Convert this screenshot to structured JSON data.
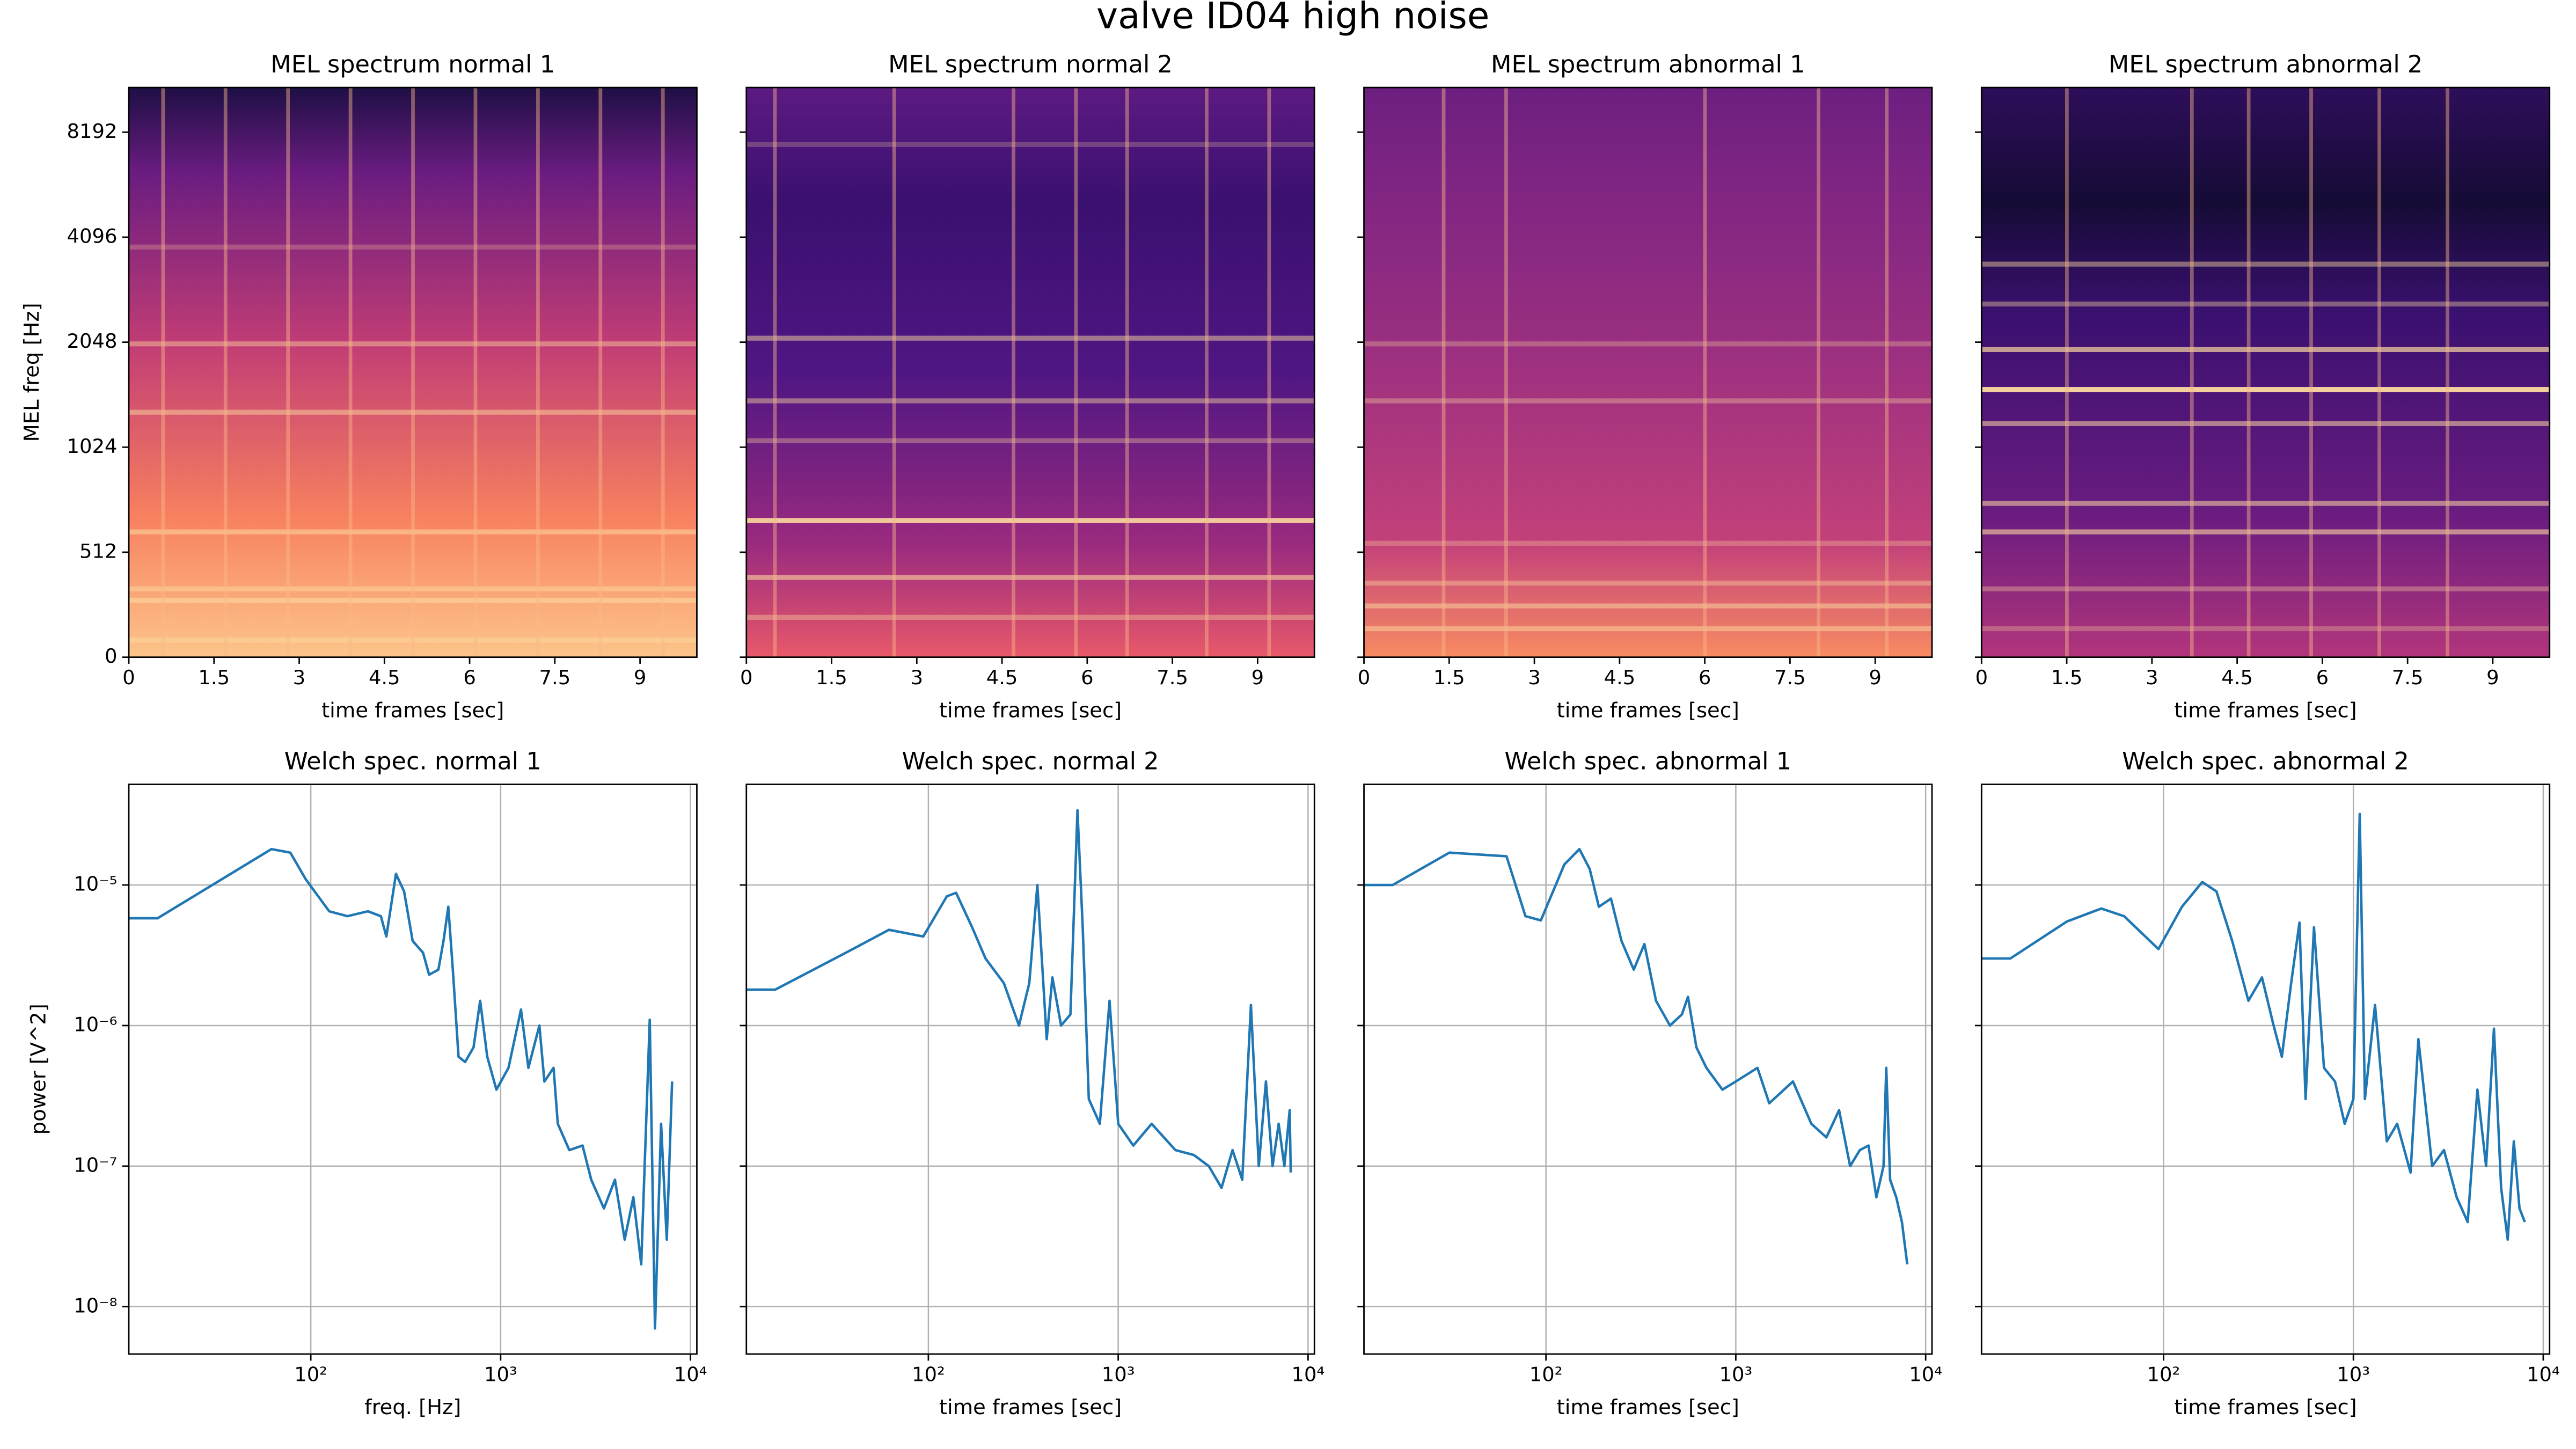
{
  "title": "valve ID04 high noise",
  "chart_data": [
    {
      "type": "heatmap",
      "title": "MEL spectrum normal 1",
      "xlabel": "time frames [sec]",
      "ylabel": "MEL freq [Hz]",
      "xlim": [
        0,
        10
      ],
      "xticks": [
        0,
        1.5,
        3,
        4.5,
        6,
        7.5,
        9
      ],
      "ylim": [
        0,
        11000
      ],
      "yscale": "symlog",
      "linthresh": 512,
      "yticks": [
        0,
        512,
        1024,
        2048,
        4096,
        8192
      ],
      "show_yticklabels": true
    },
    {
      "type": "heatmap",
      "title": "MEL spectrum normal 2",
      "xlabel": "time frames [sec]",
      "xlim": [
        0,
        10
      ],
      "xticks": [
        0,
        1.5,
        3,
        4.5,
        6,
        7.5,
        9
      ],
      "ylim": [
        0,
        11000
      ],
      "yscale": "symlog",
      "linthresh": 512,
      "yticks": [
        0,
        512,
        1024,
        2048,
        4096,
        8192
      ],
      "show_yticklabels": false
    },
    {
      "type": "heatmap",
      "title": "MEL spectrum abnormal 1",
      "xlabel": "time frames [sec]",
      "xlim": [
        0,
        10
      ],
      "xticks": [
        0,
        1.5,
        3,
        4.5,
        6,
        7.5,
        9
      ],
      "ylim": [
        0,
        11000
      ],
      "yscale": "symlog",
      "linthresh": 512,
      "yticks": [
        0,
        512,
        1024,
        2048,
        4096,
        8192
      ],
      "show_yticklabels": false
    },
    {
      "type": "heatmap",
      "title": "MEL spectrum abnormal 2",
      "xlabel": "time frames [sec]",
      "xlim": [
        0,
        10
      ],
      "xticks": [
        0,
        1.5,
        3,
        4.5,
        6,
        7.5,
        9
      ],
      "ylim": [
        0,
        11000
      ],
      "yscale": "symlog",
      "linthresh": 512,
      "yticks": [
        0,
        512,
        1024,
        2048,
        4096,
        8192
      ],
      "show_yticklabels": false
    },
    {
      "type": "line",
      "title": "Welch spec. normal 1",
      "xlabel": "freq. [Hz]",
      "ylabel": "power [V^2]",
      "xscale": "log",
      "yscale": "log",
      "grid": true,
      "color": "#1f77b4",
      "xlim": [
        11,
        10800
      ],
      "ylim": [
        4.6e-09,
        5.2e-05
      ],
      "xticks": [
        {
          "value": 100,
          "label": "10²"
        },
        {
          "value": 1000,
          "label": "10³"
        },
        {
          "value": 10000,
          "label": "10⁴"
        }
      ],
      "yticks": [
        {
          "value": 1e-08,
          "label": "10⁻⁸"
        },
        {
          "value": 1e-07,
          "label": "10⁻⁷"
        },
        {
          "value": 1e-06,
          "label": "10⁻⁶"
        },
        {
          "value": 1e-05,
          "label": "10⁻⁵"
        }
      ],
      "show_yticklabels": true,
      "x": [
        11,
        15.6,
        62,
        78,
        94,
        125,
        156,
        200,
        234,
        250,
        281,
        310,
        344,
        390,
        420,
        470,
        500,
        530,
        560,
        600,
        650,
        720,
        780,
        850,
        950,
        1100,
        1280,
        1400,
        1600,
        1700,
        1900,
        2000,
        2300,
        2700,
        3000,
        3500,
        4000,
        4500,
        5000,
        5500,
        6100,
        6500,
        7000,
        7500,
        8000
      ],
      "values": [
        5.8e-06,
        5.8e-06,
        1.8e-05,
        1.7e-05,
        1.1e-05,
        6.5e-06,
        6e-06,
        6.5e-06,
        6e-06,
        4.3e-06,
        1.2e-05,
        9e-06,
        4e-06,
        3.3e-06,
        2.3e-06,
        2.5e-06,
        4e-06,
        7e-06,
        2.5e-06,
        6e-07,
        5.5e-07,
        7e-07,
        1.5e-06,
        6e-07,
        3.5e-07,
        5e-07,
        1.3e-06,
        5e-07,
        1e-06,
        4e-07,
        5e-07,
        2e-07,
        1.3e-07,
        1.4e-07,
        8e-08,
        5e-08,
        8e-08,
        3e-08,
        6e-08,
        2e-08,
        1.1e-06,
        7e-09,
        2e-07,
        3e-08,
        4e-07
      ]
    },
    {
      "type": "line",
      "title": "Welch spec. normal 2",
      "xlabel": "time frames [sec]",
      "xscale": "log",
      "yscale": "log",
      "grid": true,
      "color": "#1f77b4",
      "xlim": [
        11,
        10800
      ],
      "ylim": [
        4.6e-09,
        5.2e-05
      ],
      "xticks": [
        {
          "value": 100,
          "label": "10²"
        },
        {
          "value": 1000,
          "label": "10³"
        },
        {
          "value": 10000,
          "label": "10⁴"
        }
      ],
      "yticks": [
        1e-08,
        1e-07,
        1e-06,
        1e-05
      ],
      "show_yticklabels": false,
      "x": [
        11,
        15.6,
        40,
        62,
        94,
        125,
        140,
        170,
        200,
        250,
        300,
        340,
        375,
        420,
        450,
        500,
        560,
        610,
        650,
        700,
        800,
        900,
        1000,
        1200,
        1500,
        2000,
        2500,
        3000,
        3500,
        4000,
        4500,
        5000,
        5500,
        6000,
        6500,
        7000,
        7500,
        8000,
        8100
      ],
      "values": [
        1.8e-06,
        1.8e-06,
        3.5e-06,
        4.8e-06,
        4.3e-06,
        8.3e-06,
        8.8e-06,
        5e-06,
        3e-06,
        2e-06,
        1e-06,
        2e-06,
        1e-05,
        8e-07,
        2.2e-06,
        1e-06,
        1.2e-06,
        3.4e-05,
        5e-06,
        3e-07,
        2e-07,
        1.5e-06,
        2e-07,
        1.4e-07,
        2e-07,
        1.3e-07,
        1.2e-07,
        1e-07,
        7e-08,
        1.3e-07,
        8e-08,
        1.4e-06,
        1e-07,
        4e-07,
        1e-07,
        2e-07,
        1e-07,
        2.5e-07,
        9e-08
      ]
    },
    {
      "type": "line",
      "title": "Welch spec. abnormal 1",
      "xlabel": "time frames [sec]",
      "xscale": "log",
      "yscale": "log",
      "grid": true,
      "color": "#1f77b4",
      "xlim": [
        11,
        10800
      ],
      "ylim": [
        4.6e-09,
        5.2e-05
      ],
      "xticks": [
        {
          "value": 100,
          "label": "10²"
        },
        {
          "value": 1000,
          "label": "10³"
        },
        {
          "value": 10000,
          "label": "10⁴"
        }
      ],
      "yticks": [
        1e-08,
        1e-07,
        1e-06,
        1e-05
      ],
      "show_yticklabels": false,
      "x": [
        11,
        15.6,
        31,
        62,
        78,
        94,
        125,
        150,
        170,
        190,
        220,
        250,
        290,
        330,
        380,
        450,
        520,
        560,
        620,
        700,
        850,
        1000,
        1300,
        1500,
        2000,
        2500,
        3000,
        3500,
        4000,
        4500,
        5000,
        5500,
        6000,
        6200,
        6500,
        7000,
        7500,
        8000
      ],
      "values": [
        1e-05,
        1e-05,
        1.7e-05,
        1.6e-05,
        6e-06,
        5.6e-06,
        1.4e-05,
        1.8e-05,
        1.3e-05,
        7e-06,
        8e-06,
        4e-06,
        2.5e-06,
        3.8e-06,
        1.5e-06,
        1e-06,
        1.2e-06,
        1.6e-06,
        7e-07,
        5e-07,
        3.5e-07,
        4e-07,
        5e-07,
        2.8e-07,
        4e-07,
        2e-07,
        1.6e-07,
        2.5e-07,
        1e-07,
        1.3e-07,
        1.4e-07,
        6e-08,
        1e-07,
        5e-07,
        8e-08,
        6e-08,
        4e-08,
        2e-08
      ]
    },
    {
      "type": "line",
      "title": "Welch spec. abnormal 2",
      "xlabel": "time frames [sec]",
      "xscale": "log",
      "yscale": "log",
      "grid": true,
      "color": "#1f77b4",
      "xlim": [
        11,
        10800
      ],
      "ylim": [
        4.6e-09,
        5.2e-05
      ],
      "xticks": [
        {
          "value": 100,
          "label": "10²"
        },
        {
          "value": 1000,
          "label": "10³"
        },
        {
          "value": 10000,
          "label": "10⁴"
        }
      ],
      "yticks": [
        1e-08,
        1e-07,
        1e-06,
        1e-05
      ],
      "show_yticklabels": false,
      "x": [
        11,
        15.6,
        31,
        47,
        62,
        94,
        125,
        160,
        190,
        230,
        280,
        330,
        380,
        420,
        470,
        520,
        560,
        620,
        700,
        800,
        900,
        1000,
        1080,
        1150,
        1300,
        1500,
        1700,
        2000,
        2200,
        2600,
        3000,
        3500,
        4000,
        4500,
        5000,
        5500,
        6000,
        6500,
        7000,
        7500,
        8000
      ],
      "values": [
        3e-06,
        3e-06,
        5.5e-06,
        6.8e-06,
        6e-06,
        3.5e-06,
        7e-06,
        1.05e-05,
        9e-06,
        4e-06,
        1.5e-06,
        2.2e-06,
        1e-06,
        6e-07,
        2e-06,
        5.4e-06,
        3e-07,
        5e-06,
        5e-07,
        4e-07,
        2e-07,
        3e-07,
        3.2e-05,
        3e-07,
        1.4e-06,
        1.5e-07,
        2e-07,
        9e-08,
        8e-07,
        1e-07,
        1.3e-07,
        6e-08,
        4e-08,
        3.5e-07,
        1e-07,
        9.5e-07,
        7e-08,
        3e-08,
        1.5e-07,
        5e-08,
        4e-08
      ]
    }
  ]
}
